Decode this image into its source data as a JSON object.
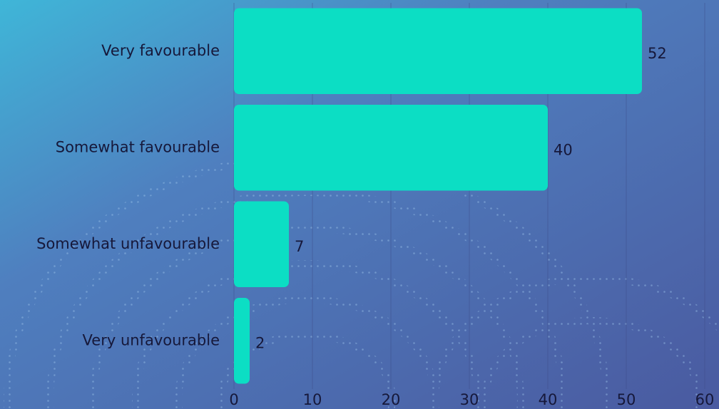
{
  "chart_data": {
    "type": "bar",
    "orientation": "horizontal",
    "categories": [
      "Very favourable",
      "Somewhat favourable",
      "Somewhat unfavourable",
      "Very unfavourable"
    ],
    "values": [
      52,
      40,
      7,
      2
    ],
    "color": "#0cdec4",
    "xlim": [
      0,
      60
    ],
    "xticks": [
      0,
      10,
      20,
      30,
      40,
      50,
      60
    ],
    "grid": true
  }
}
